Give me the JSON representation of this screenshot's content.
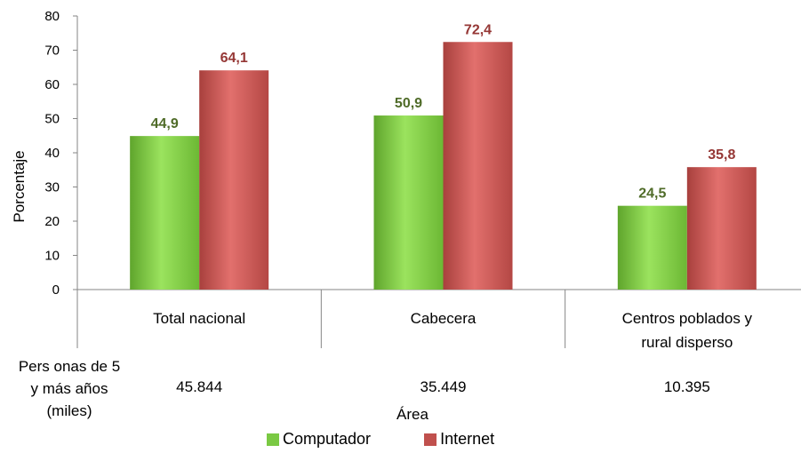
{
  "chart_data": {
    "type": "bar",
    "categories": [
      "Total nacional",
      "Cabecera",
      "Centros poblados y rural disperso"
    ],
    "category_lines": [
      [
        "Total nacional"
      ],
      [
        "Cabecera"
      ],
      [
        "Centros poblados y",
        "rural disperso"
      ]
    ],
    "series": [
      {
        "name": "Computador",
        "values": [
          44.9,
          50.9,
          24.5
        ],
        "labels": [
          "44,9",
          "50,9",
          "24,5"
        ],
        "color": "#7ac943",
        "label_color": "#4f6b28"
      },
      {
        "name": "Internet",
        "values": [
          64.1,
          72.4,
          35.8
        ],
        "labels": [
          "64,1",
          "72,4",
          "35,8"
        ],
        "color": "#c0504d",
        "label_color": "#953735"
      }
    ],
    "ylabel": "Porcentaje",
    "xlabel": "Área",
    "ylim": [
      0,
      80
    ],
    "yticks": [
      0,
      10,
      20,
      30,
      40,
      50,
      60,
      70,
      80
    ],
    "grid": false,
    "legend_position": "bottom",
    "table": {
      "row_label_lines": [
        "Pers onas de 5",
        "y más años",
        "(miles)"
      ],
      "values": [
        "45.844",
        "35.449",
        "10.395"
      ]
    }
  }
}
